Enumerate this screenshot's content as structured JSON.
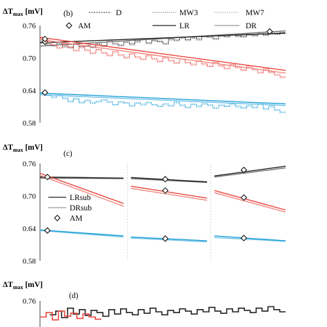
{
  "chart_data": [
    {
      "panel": "(b)",
      "type": "line",
      "ylabel_main": "ΔT",
      "ylabel_sub": "max",
      "ylabel_unit": " [mV]",
      "yticks": [
        "0.76",
        "0.70",
        "0.64",
        "0.58"
      ],
      "ylim": [
        0.58,
        0.76
      ],
      "xlim": [
        0,
        1
      ],
      "grid": false,
      "legend_position": "top",
      "legend": [
        {
          "label": "D",
          "style": "dotted-black",
          "marker": "none"
        },
        {
          "label": "MW3",
          "style": "dotted-gray",
          "marker": "none"
        },
        {
          "label": "MW7",
          "style": "dotted-gray",
          "marker": "none"
        },
        {
          "label": "AM",
          "style": "none",
          "marker": "diamond"
        },
        {
          "label": "LR",
          "style": "solid-black",
          "marker": "none"
        },
        {
          "label": "DR",
          "style": "solid-gray",
          "marker": "none"
        }
      ],
      "series": [
        {
          "group": "black",
          "color": "#222222",
          "lr": [
            [
              0.0,
              0.728
            ],
            [
              1.0,
              0.746
            ]
          ],
          "dr": [
            [
              0.0,
              0.722
            ],
            [
              1.0,
              0.75
            ]
          ],
          "am": [
            [
              0.02,
              0.73
            ],
            [
              0.935,
              0.749
            ]
          ],
          "step": [
            0.729,
            0.726,
            0.724,
            0.727,
            0.722,
            0.72,
            0.725,
            0.721,
            0.723,
            0.719,
            0.726,
            0.723,
            0.73,
            0.727,
            0.724,
            0.729,
            0.726,
            0.731,
            0.734,
            0.728,
            0.733,
            0.73,
            0.727,
            0.735,
            0.732,
            0.738,
            0.734,
            0.737,
            0.735,
            0.741,
            0.738,
            0.736,
            0.742,
            0.739,
            0.744,
            0.741,
            0.739,
            0.744,
            0.742,
            0.745,
            0.743,
            0.746,
            0.744,
            0.747
          ]
        },
        {
          "group": "red",
          "color": "#e8453c",
          "lr": [
            [
              0.0,
              0.738
            ],
            [
              1.0,
              0.677
            ]
          ],
          "dr": [
            [
              0.0,
              0.734
            ],
            [
              1.0,
              0.672
            ]
          ],
          "am": [
            [
              0.02,
              0.735
            ]
          ],
          "step": [
            0.737,
            0.731,
            0.724,
            0.718,
            0.726,
            0.72,
            0.713,
            0.721,
            0.715,
            0.708,
            0.716,
            0.71,
            0.704,
            0.712,
            0.706,
            0.7,
            0.708,
            0.702,
            0.697,
            0.705,
            0.699,
            0.693,
            0.701,
            0.696,
            0.69,
            0.698,
            0.692,
            0.687,
            0.695,
            0.689,
            0.684,
            0.692,
            0.686,
            0.68,
            0.688,
            0.683,
            0.677,
            0.685,
            0.679,
            0.672,
            0.68,
            0.674,
            0.668,
            0.665
          ]
        },
        {
          "group": "blue",
          "color": "#1e9fd8",
          "lr": [
            [
              0.0,
              0.635
            ],
            [
              1.0,
              0.615
            ]
          ],
          "dr": [
            [
              0.0,
              0.632
            ],
            [
              1.0,
              0.612
            ]
          ],
          "am": [
            [
              0.02,
              0.636
            ]
          ],
          "step": [
            0.634,
            0.632,
            0.628,
            0.63,
            0.626,
            0.62,
            0.624,
            0.618,
            0.622,
            0.616,
            0.62,
            0.623,
            0.618,
            0.614,
            0.619,
            0.616,
            0.612,
            0.617,
            0.613,
            0.618,
            0.614,
            0.61,
            0.615,
            0.612,
            0.617,
            0.613,
            0.609,
            0.614,
            0.611,
            0.616,
            0.612,
            0.608,
            0.613,
            0.61,
            0.615,
            0.611,
            0.607,
            0.612,
            0.609,
            0.614,
            0.606,
            0.611,
            0.603,
            0.6
          ]
        }
      ]
    },
    {
      "panel": "(c)",
      "type": "line",
      "ylabel_main": "ΔT",
      "ylabel_sub": "max",
      "ylabel_unit": " [mV]",
      "yticks": [
        "0.76",
        "0.70",
        "0.64",
        "0.58"
      ],
      "ylim": [
        0.58,
        0.76
      ],
      "xlim": [
        0,
        1
      ],
      "grid": false,
      "legend_position": "left-middle",
      "legend": [
        {
          "label": "LRsub",
          "style": "solid-black",
          "marker": "none"
        },
        {
          "label": "DRsub",
          "style": "solid-gray",
          "marker": "none"
        },
        {
          "label": "AM",
          "style": "none",
          "marker": "diamond"
        }
      ],
      "segments": [
        {
          "x": [
            0.0,
            0.34
          ],
          "black": [
            0.735,
            0.733
          ],
          "black2": [
            0.733,
            0.732
          ],
          "red": [
            0.742,
            0.686
          ],
          "red2": [
            0.738,
            0.681
          ],
          "blue": [
            0.637,
            0.626
          ],
          "blue2": [
            0.636,
            0.624
          ],
          "am_x": 0.03,
          "am_black": 0.735,
          "am_red": null,
          "am_blue": 0.636
        },
        {
          "x": [
            0.37,
            0.68
          ],
          "black": [
            0.734,
            0.726
          ],
          "black2": [
            0.732,
            0.725
          ],
          "red": [
            0.718,
            0.696
          ],
          "red2": [
            0.714,
            0.692
          ],
          "blue": [
            0.624,
            0.617
          ],
          "blue2": [
            0.622,
            0.615
          ],
          "am_x": 0.51,
          "am_black": 0.731,
          "am_red": 0.71,
          "am_blue": 0.621
        },
        {
          "x": [
            0.71,
            1.0
          ],
          "black": [
            0.737,
            0.755
          ],
          "black2": [
            0.735,
            0.752
          ],
          "red": [
            0.71,
            0.674
          ],
          "red2": [
            0.706,
            0.67
          ],
          "blue": [
            0.626,
            0.617
          ],
          "blue2": [
            0.623,
            0.616
          ],
          "am_x": 0.83,
          "am_black": 0.748,
          "am_red": 0.697,
          "am_blue": 0.622
        }
      ]
    },
    {
      "panel": "(d)",
      "type": "line",
      "ylabel_main": "ΔT",
      "ylabel_sub": "max",
      "ylabel_unit": " [mV]",
      "yticks": [
        "0.76"
      ],
      "ylim": [
        0.7,
        0.76
      ],
      "xlim": [
        0,
        1
      ],
      "grid": false,
      "series": [
        {
          "color": "#222222",
          "values": [
            0.741,
            0.746,
            0.737,
            0.75,
            0.742,
            0.748,
            0.74,
            0.747,
            0.744,
            0.739,
            0.748,
            0.742,
            0.749,
            0.744,
            0.741,
            0.748,
            0.743,
            0.75,
            0.745,
            0.741,
            0.747,
            0.744,
            0.749,
            0.746,
            0.742,
            0.748,
            0.745,
            0.751,
            0.746,
            0.743,
            0.749,
            0.745,
            0.75,
            0.747,
            0.744,
            0.75,
            0.746,
            0.752,
            0.748,
            0.745
          ]
        },
        {
          "color": "#e8453c",
          "values": [
            0.738,
            0.744,
            0.734,
            0.746,
            0.739,
            0.743,
            0.736,
            0.742,
            0.738,
            0.735
          ]
        }
      ]
    }
  ]
}
